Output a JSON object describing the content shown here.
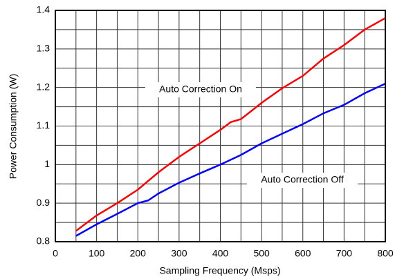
{
  "chart_data": {
    "type": "line",
    "xlabel": "Sampling Frequency (Msps)",
    "ylabel": "Power Consumption (W)",
    "xlim": [
      0,
      800
    ],
    "xticks": [
      0,
      100,
      200,
      300,
      400,
      500,
      600,
      700,
      800
    ],
    "ylim": [
      0.8,
      1.4
    ],
    "yticks": [
      0.8,
      0.9,
      1,
      1.1,
      1.2,
      1.3,
      1.4
    ],
    "grid": true,
    "minor_grid": true,
    "series": [
      {
        "name": "Auto Correction On",
        "color": "#ff0000",
        "x": [
          50,
          100,
          150,
          200,
          250,
          300,
          350,
          400,
          425,
          450,
          500,
          550,
          600,
          650,
          700,
          750,
          800
        ],
        "values": [
          0.828,
          0.868,
          0.9,
          0.935,
          0.98,
          1.02,
          1.055,
          1.09,
          1.11,
          1.118,
          1.16,
          1.198,
          1.23,
          1.275,
          1.31,
          1.35,
          1.38
        ]
      },
      {
        "name": "Auto Correction Off",
        "color": "#0000ff",
        "x": [
          50,
          100,
          150,
          200,
          225,
          250,
          300,
          350,
          400,
          450,
          500,
          550,
          600,
          650,
          700,
          750,
          800
        ],
        "values": [
          0.815,
          0.845,
          0.872,
          0.9,
          0.907,
          0.925,
          0.953,
          0.977,
          1.0,
          1.025,
          1.055,
          1.08,
          1.105,
          1.133,
          1.155,
          1.185,
          1.21
        ]
      }
    ]
  }
}
